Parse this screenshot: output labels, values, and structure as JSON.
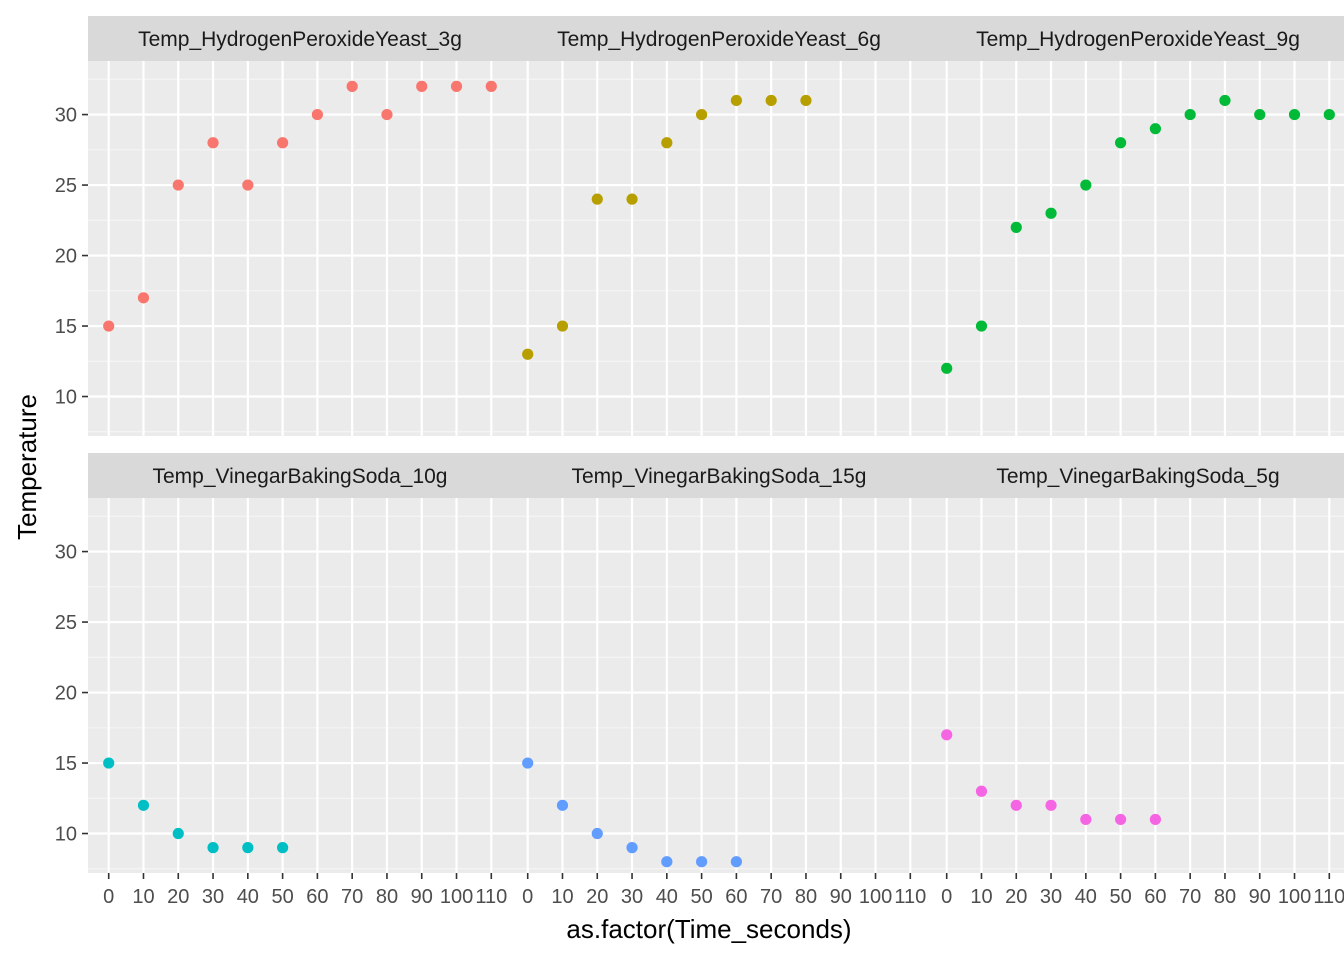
{
  "chart_data": {
    "type": "scatter",
    "xlabel": "as.factor(Time_seconds)",
    "ylabel": "Temperature",
    "x_categories": [
      "0",
      "10",
      "20",
      "30",
      "40",
      "50",
      "60",
      "70",
      "80",
      "90",
      "100",
      "110"
    ],
    "y_ticks": [
      10,
      15,
      20,
      25,
      30
    ],
    "ylim": [
      7.2,
      33.8
    ],
    "grid": true,
    "facet_layout": {
      "rows": 2,
      "cols": 3
    },
    "panels": [
      {
        "name": "Temp_HydrogenPeroxideYeast_3g",
        "color": "#F8766D",
        "x": [
          0,
          10,
          20,
          30,
          40,
          50,
          60,
          70,
          80,
          90,
          100,
          110
        ],
        "y": [
          15,
          17,
          25,
          28,
          25,
          28,
          30,
          32,
          30,
          32,
          32,
          32
        ]
      },
      {
        "name": "Temp_HydrogenPeroxideYeast_6g",
        "color": "#B79F00",
        "x": [
          0,
          10,
          20,
          30,
          40,
          50,
          60,
          70,
          80
        ],
        "y": [
          13,
          15,
          24,
          24,
          28,
          30,
          31,
          31,
          31
        ]
      },
      {
        "name": "Temp_HydrogenPeroxideYeast_9g",
        "color": "#00BA38",
        "x": [
          0,
          10,
          20,
          30,
          40,
          50,
          60,
          70,
          80,
          90,
          100,
          110
        ],
        "y": [
          12,
          15,
          22,
          23,
          25,
          28,
          29,
          30,
          31,
          30,
          30,
          30
        ]
      },
      {
        "name": "Temp_VinegarBakingSoda_10g",
        "color": "#00BFC4",
        "x": [
          0,
          10,
          20,
          30,
          40,
          50
        ],
        "y": [
          15,
          12,
          10,
          9,
          9,
          9
        ]
      },
      {
        "name": "Temp_VinegarBakingSoda_15g",
        "color": "#619CFF",
        "x": [
          0,
          10,
          20,
          30,
          40,
          50,
          60
        ],
        "y": [
          15,
          12,
          10,
          9,
          8,
          8,
          8
        ]
      },
      {
        "name": "Temp_VinegarBakingSoda_5g",
        "color": "#F564E3",
        "x": [
          0,
          10,
          20,
          30,
          40,
          50,
          60
        ],
        "y": [
          17,
          13,
          12,
          12,
          11,
          11,
          11
        ]
      }
    ]
  }
}
